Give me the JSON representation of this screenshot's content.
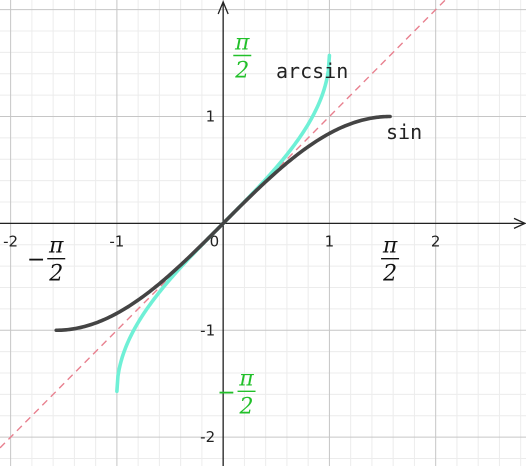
{
  "chart_data": {
    "type": "line",
    "xlim": [
      -2.1,
      2.85
    ],
    "ylim": [
      -2.27,
      2.09
    ],
    "grid": true,
    "minor_grid_step": 0.2,
    "x_ticks": [
      {
        "value": -2,
        "label": "-2"
      },
      {
        "value": -1,
        "label": "-1"
      },
      {
        "value": 0,
        "label": "0"
      },
      {
        "value": 1,
        "label": "1"
      },
      {
        "value": 2,
        "label": "2"
      }
    ],
    "y_ticks": [
      {
        "value": -2,
        "label": "-2"
      },
      {
        "value": -1,
        "label": "-1"
      },
      {
        "value": 1,
        "label": "1"
      }
    ],
    "series": [
      {
        "name": "sin",
        "function": "sin",
        "domain": [
          -1.5708,
          1.5708
        ],
        "color": "#444444"
      },
      {
        "name": "arcsin",
        "function": "arcsin",
        "domain": [
          -1,
          1
        ],
        "color": "#6ff0d6"
      },
      {
        "function": "identity",
        "style": "dashed",
        "color": "#e8808f"
      }
    ],
    "annotations": [
      {
        "id": "xpi2",
        "sign": "",
        "num": "π",
        "den": "2",
        "x": 1.5708,
        "y": -0.33,
        "color": "#111111"
      },
      {
        "id": "xnegpi2",
        "sign": "−",
        "num": "π",
        "den": "2",
        "x": -1.5708,
        "y": -0.33,
        "color": "#111111"
      },
      {
        "id": "ypi2",
        "sign": "",
        "num": "π",
        "den": "2",
        "x": 0.18,
        "y": 1.5708,
        "color": "#22c02a"
      },
      {
        "id": "ynegpi2",
        "sign": "−",
        "num": "π",
        "den": "2",
        "x": 0.22,
        "y": -1.5708,
        "color": "#22c02a"
      }
    ]
  }
}
